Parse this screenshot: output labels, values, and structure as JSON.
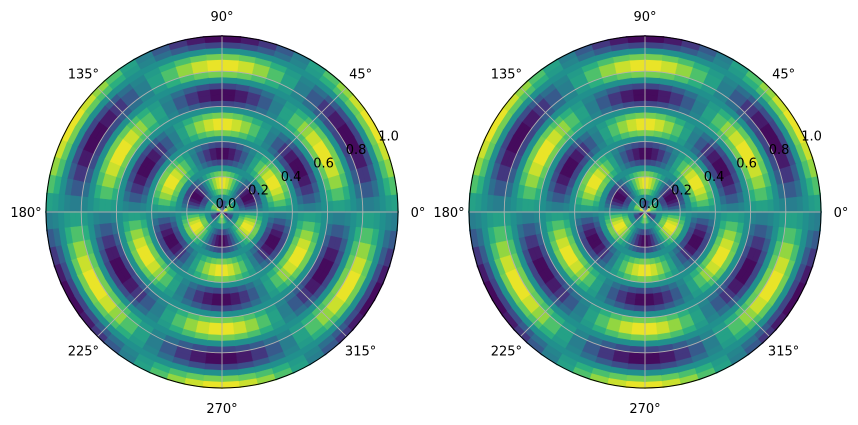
{
  "chart_data": [
    {
      "type": "heatmap",
      "projection": "polar",
      "title": "",
      "colormap": "viridis",
      "color_range": [
        -1,
        1
      ],
      "grid": true,
      "r_range": [
        0,
        1
      ],
      "r_ticks": [
        0.0,
        0.2,
        0.4,
        0.6,
        0.8,
        1.0
      ],
      "r_tick_labels": [
        "0.0",
        "0.2",
        "0.4",
        "0.6",
        "0.8",
        "1.0"
      ],
      "theta_ticks_deg": [
        0,
        45,
        90,
        135,
        180,
        225,
        270,
        315
      ],
      "theta_tick_labels": [
        "0°",
        "45°",
        "90°",
        "135°",
        "180°",
        "225°",
        "270°",
        "315°"
      ],
      "field": "sin(3*theta) * cos(2*pi*r*3)",
      "mesh": {
        "theta_steps": 60,
        "r_steps": 30
      }
    },
    {
      "type": "heatmap",
      "projection": "polar",
      "title": "",
      "colormap": "viridis",
      "color_range": [
        -1,
        1
      ],
      "grid": true,
      "r_range": [
        0,
        1
      ],
      "r_ticks": [
        0.0,
        0.2,
        0.4,
        0.6,
        0.8,
        1.0
      ],
      "r_tick_labels": [
        "0.0",
        "0.2",
        "0.4",
        "0.6",
        "0.8",
        "1.0"
      ],
      "theta_ticks_deg": [
        0,
        45,
        90,
        135,
        180,
        225,
        270,
        315
      ],
      "theta_tick_labels": [
        "0°",
        "45°",
        "90°",
        "135°",
        "180°",
        "225°",
        "270°",
        "315°"
      ],
      "field": "sin(3*theta) * cos(2*pi*r*3)",
      "mesh": {
        "theta_steps": 60,
        "r_steps": 30
      }
    }
  ]
}
